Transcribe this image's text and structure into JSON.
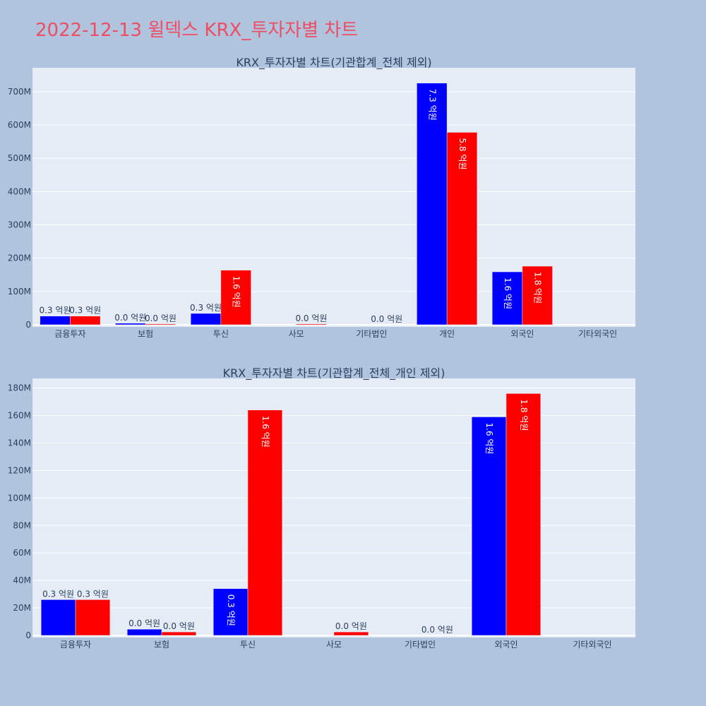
{
  "title": "2022-12-13 윌덱스 KRX_투자자별 차트",
  "colors": {
    "background": "#b0c4de",
    "plot_bg": "#e5ecf6",
    "title": "#ee4d64",
    "series_a": "#0000ff",
    "series_b": "#ff0000"
  },
  "chart_data": [
    {
      "type": "bar",
      "title": "KRX_투자자별 차트(기관합계_전체 제외)",
      "categories": [
        "금융투자",
        "보험",
        "투신",
        "사모",
        "기타법인",
        "개인",
        "외국인",
        "기타외국인"
      ],
      "series": [
        {
          "color": "#0000ff",
          "values": [
            26,
            4.5,
            34,
            0,
            0,
            726,
            159,
            0
          ],
          "labels": [
            "0.3 억원",
            "0.0 억원",
            "0.3 억원",
            "",
            "",
            "7.3 억원",
            "1.6 억원",
            ""
          ]
        },
        {
          "color": "#ff0000",
          "values": [
            26,
            2.5,
            164,
            2.5,
            0,
            578,
            176,
            0
          ],
          "labels": [
            "0.3 억원",
            "0.0 억원",
            "1.6 억원",
            "0.0 억원",
            "0.0 억원",
            "5.8 억원",
            "1.8 억원",
            ""
          ]
        }
      ],
      "yunit": "M",
      "ylim": [
        0,
        772
      ],
      "yticks": [
        0,
        100,
        200,
        300,
        400,
        500,
        600,
        700
      ],
      "ytick_labels": [
        "0",
        "100M",
        "200M",
        "300M",
        "400M",
        "500M",
        "600M",
        "700M"
      ],
      "grid": true
    },
    {
      "type": "bar",
      "title": "KRX_투자자별 차트(기관합계_전체_개인 제외)",
      "categories": [
        "금융투자",
        "보험",
        "투신",
        "사모",
        "기타법인",
        "외국인",
        "기타외국인"
      ],
      "series": [
        {
          "color": "#0000ff",
          "values": [
            26,
            4.5,
            34,
            0,
            0,
            159,
            0
          ],
          "labels": [
            "0.3 억원",
            "0.0 억원",
            "0.3 억원",
            "",
            "",
            "1.6 억원",
            ""
          ]
        },
        {
          "color": "#ff0000",
          "values": [
            26,
            2.5,
            164,
            2.5,
            0,
            176,
            0
          ],
          "labels": [
            "0.3 억원",
            "0.0 억원",
            "1.6 억원",
            "0.0 억원",
            "0.0 억원",
            "1.8 억원",
            ""
          ]
        }
      ],
      "yunit": "M",
      "ylim": [
        0,
        187
      ],
      "yticks": [
        0,
        20,
        40,
        60,
        80,
        100,
        120,
        140,
        160,
        180
      ],
      "ytick_labels": [
        "0",
        "20M",
        "40M",
        "60M",
        "80M",
        "100M",
        "120M",
        "140M",
        "160M",
        "180M"
      ],
      "grid": true
    }
  ]
}
